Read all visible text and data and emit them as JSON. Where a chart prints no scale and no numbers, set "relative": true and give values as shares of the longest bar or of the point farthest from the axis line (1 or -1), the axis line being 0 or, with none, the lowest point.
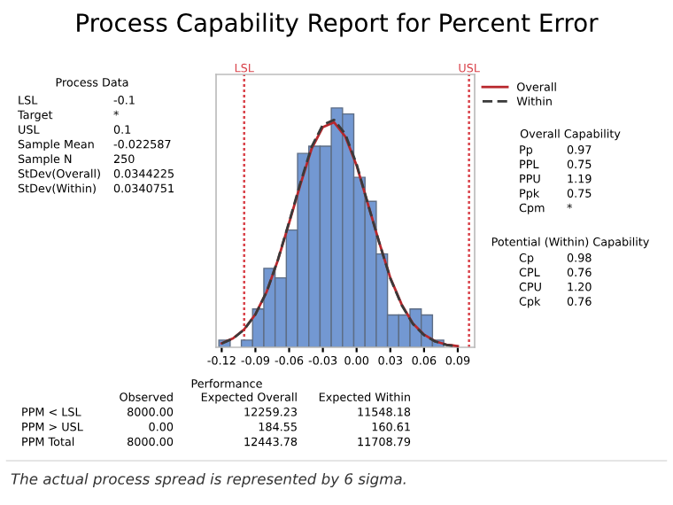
{
  "chart_data": [
    {
      "type": "histogram",
      "title": "Process Capability Report for Percent Error",
      "relative": true,
      "color": "#7398d2",
      "bins": [
        -0.1225,
        -0.1125,
        -0.1025,
        -0.0925,
        -0.0825,
        -0.0725,
        -0.0625,
        -0.0525,
        -0.0425,
        -0.0325,
        -0.0225,
        -0.0125,
        -0.0025,
        0.0075,
        0.0175,
        0.0275,
        0.0375,
        0.0475,
        0.0575,
        0.0675,
        0.0775
      ],
      "values": [
        0.03,
        0,
        0.03,
        0.16,
        0.33,
        0.29,
        0.49,
        0.81,
        0.84,
        0.84,
        1.0,
        0.975,
        0.71,
        0.61,
        0.39,
        0.135,
        0.135,
        0.16,
        0.135,
        0.03
      ],
      "series": [
        {
          "name": "Overall",
          "type": "line",
          "color": "#b8272c",
          "line_style": "solid",
          "x": [
            -0.12,
            -0.11,
            -0.1,
            -0.09,
            -0.08,
            -0.07,
            -0.06,
            -0.05,
            -0.04,
            -0.03,
            -0.02,
            -0.01,
            0.0,
            0.01,
            0.02,
            0.03,
            0.04,
            0.05,
            0.06,
            0.07,
            0.08,
            0.09
          ],
          "values": [
            0.017,
            0.037,
            0.075,
            0.138,
            0.232,
            0.364,
            0.52,
            0.68,
            0.83,
            0.92,
            0.94,
            0.88,
            0.76,
            0.6,
            0.44,
            0.29,
            0.18,
            0.1,
            0.053,
            0.025,
            0.011,
            0.005
          ]
        },
        {
          "name": "Within",
          "type": "line",
          "color": "#3a3a3a",
          "line_style": "dashed",
          "x": [
            -0.12,
            -0.11,
            -0.1,
            -0.09,
            -0.08,
            -0.07,
            -0.06,
            -0.05,
            -0.04,
            -0.03,
            -0.02,
            -0.01,
            0.0,
            0.01,
            0.02,
            0.03,
            0.04,
            0.05,
            0.06,
            0.07,
            0.08,
            0.09
          ],
          "values": [
            0.016,
            0.036,
            0.074,
            0.137,
            0.232,
            0.366,
            0.524,
            0.687,
            0.838,
            0.93,
            0.95,
            0.89,
            0.765,
            0.6,
            0.44,
            0.288,
            0.177,
            0.098,
            0.051,
            0.024,
            0.01,
            0.004
          ]
        }
      ],
      "xlim": [
        -0.125,
        0.105
      ],
      "xticks": [
        -0.12,
        -0.09,
        -0.06,
        -0.03,
        {
          "value": 0,
          "label": "0.00"
        },
        0.03,
        0.06,
        0.09
      ],
      "ref_lines": [
        {
          "axis": "x",
          "value": -0.1,
          "label": "LSL",
          "color": "#d9434b",
          "line_style": "dotted"
        },
        {
          "axis": "x",
          "value": 0.1,
          "label": "USL",
          "color": "#d9434b",
          "line_style": "dotted"
        }
      ],
      "legend": "top right",
      "tick_labels": "x",
      "annotations": [
        "The actual process spread is represented by 6 sigma."
      ]
    },
    {
      "type": "other",
      "title": "Process Data",
      "annotations": [
        "LSL",
        "-0.1",
        "Target",
        "*",
        "USL",
        "0.1",
        "Sample Mean",
        "-0.022587",
        "Sample N",
        "250",
        "StDev(Overall)",
        "0.0344225",
        "StDev(Within)",
        "0.0340751"
      ]
    },
    {
      "type": "other",
      "title": "Overall Capability",
      "annotations": [
        "Pp",
        "0.97",
        "PPL",
        "0.75",
        "PPU",
        "1.19",
        "Ppk",
        "0.75",
        "Cpm",
        "*"
      ]
    },
    {
      "type": "other",
      "title": "Potential (Within) Capability",
      "annotations": [
        "Cp",
        "0.98",
        "CPL",
        "0.76",
        "CPU",
        "1.20",
        "Cpk",
        "0.76"
      ]
    },
    {
      "type": "other",
      "title": "Performance",
      "annotations": [
        "Observed",
        "Expected Overall",
        "Expected Within",
        "PPM < LSL",
        "8000.00",
        "12259.23",
        "11548.18",
        "PPM > USL",
        "0.00",
        "184.55",
        "160.61",
        "PPM Total",
        "8000.00",
        "12443.78",
        "11708.79"
      ]
    }
  ]
}
